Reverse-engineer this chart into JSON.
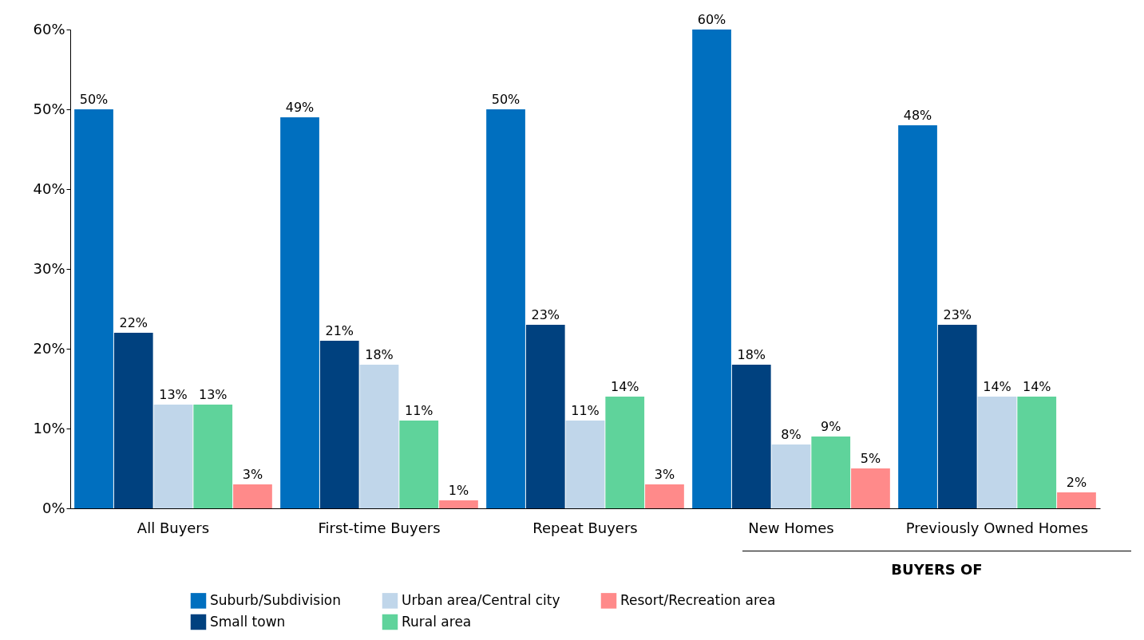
{
  "chart_data": {
    "type": "bar",
    "categories": [
      "All Buyers",
      "First-time Buyers",
      "Repeat Buyers",
      "New Homes",
      "Previously Owned Homes"
    ],
    "series": [
      {
        "name": "Suburb/Subdivision",
        "color": "#006fbf",
        "values": [
          50,
          49,
          50,
          60,
          48
        ],
        "value_labels": [
          "50%",
          "49%",
          "50%",
          "60%",
          "48%"
        ]
      },
      {
        "name": "Small town",
        "color": "#00417f",
        "values": [
          22,
          21,
          23,
          18,
          23
        ],
        "value_labels": [
          "22%",
          "21%",
          "23%",
          "18%",
          "23%"
        ]
      },
      {
        "name": "Urban area/Central city",
        "color": "#c0d6ea",
        "values": [
          13,
          18,
          11,
          8,
          14
        ],
        "value_labels": [
          "13%",
          "18%",
          "11%",
          "8%",
          "14%"
        ]
      },
      {
        "name": "Rural area",
        "color": "#5fd39b",
        "values": [
          13,
          11,
          14,
          9,
          14
        ],
        "value_labels": [
          "13%",
          "11%",
          "14%",
          "9%",
          "14%"
        ]
      },
      {
        "name": "Resort/Recreation area",
        "color": "#ff8a8a",
        "values": [
          3,
          1,
          3,
          5,
          2
        ],
        "value_labels": [
          "3%",
          "1%",
          "3%",
          "5%",
          "2%"
        ]
      }
    ],
    "ylim": [
      0,
      60
    ],
    "yticks": [
      {
        "value": 0,
        "label": "0%"
      },
      {
        "value": 10,
        "label": "10%"
      },
      {
        "value": 20,
        "label": "20%"
      },
      {
        "value": 30,
        "label": "30%"
      },
      {
        "value": 40,
        "label": "40%"
      },
      {
        "value": 50,
        "label": "50%"
      },
      {
        "value": 60,
        "label": "60%"
      }
    ],
    "annotations": [
      "BUYERS OF"
    ],
    "legend": "bottom",
    "grid": false
  }
}
